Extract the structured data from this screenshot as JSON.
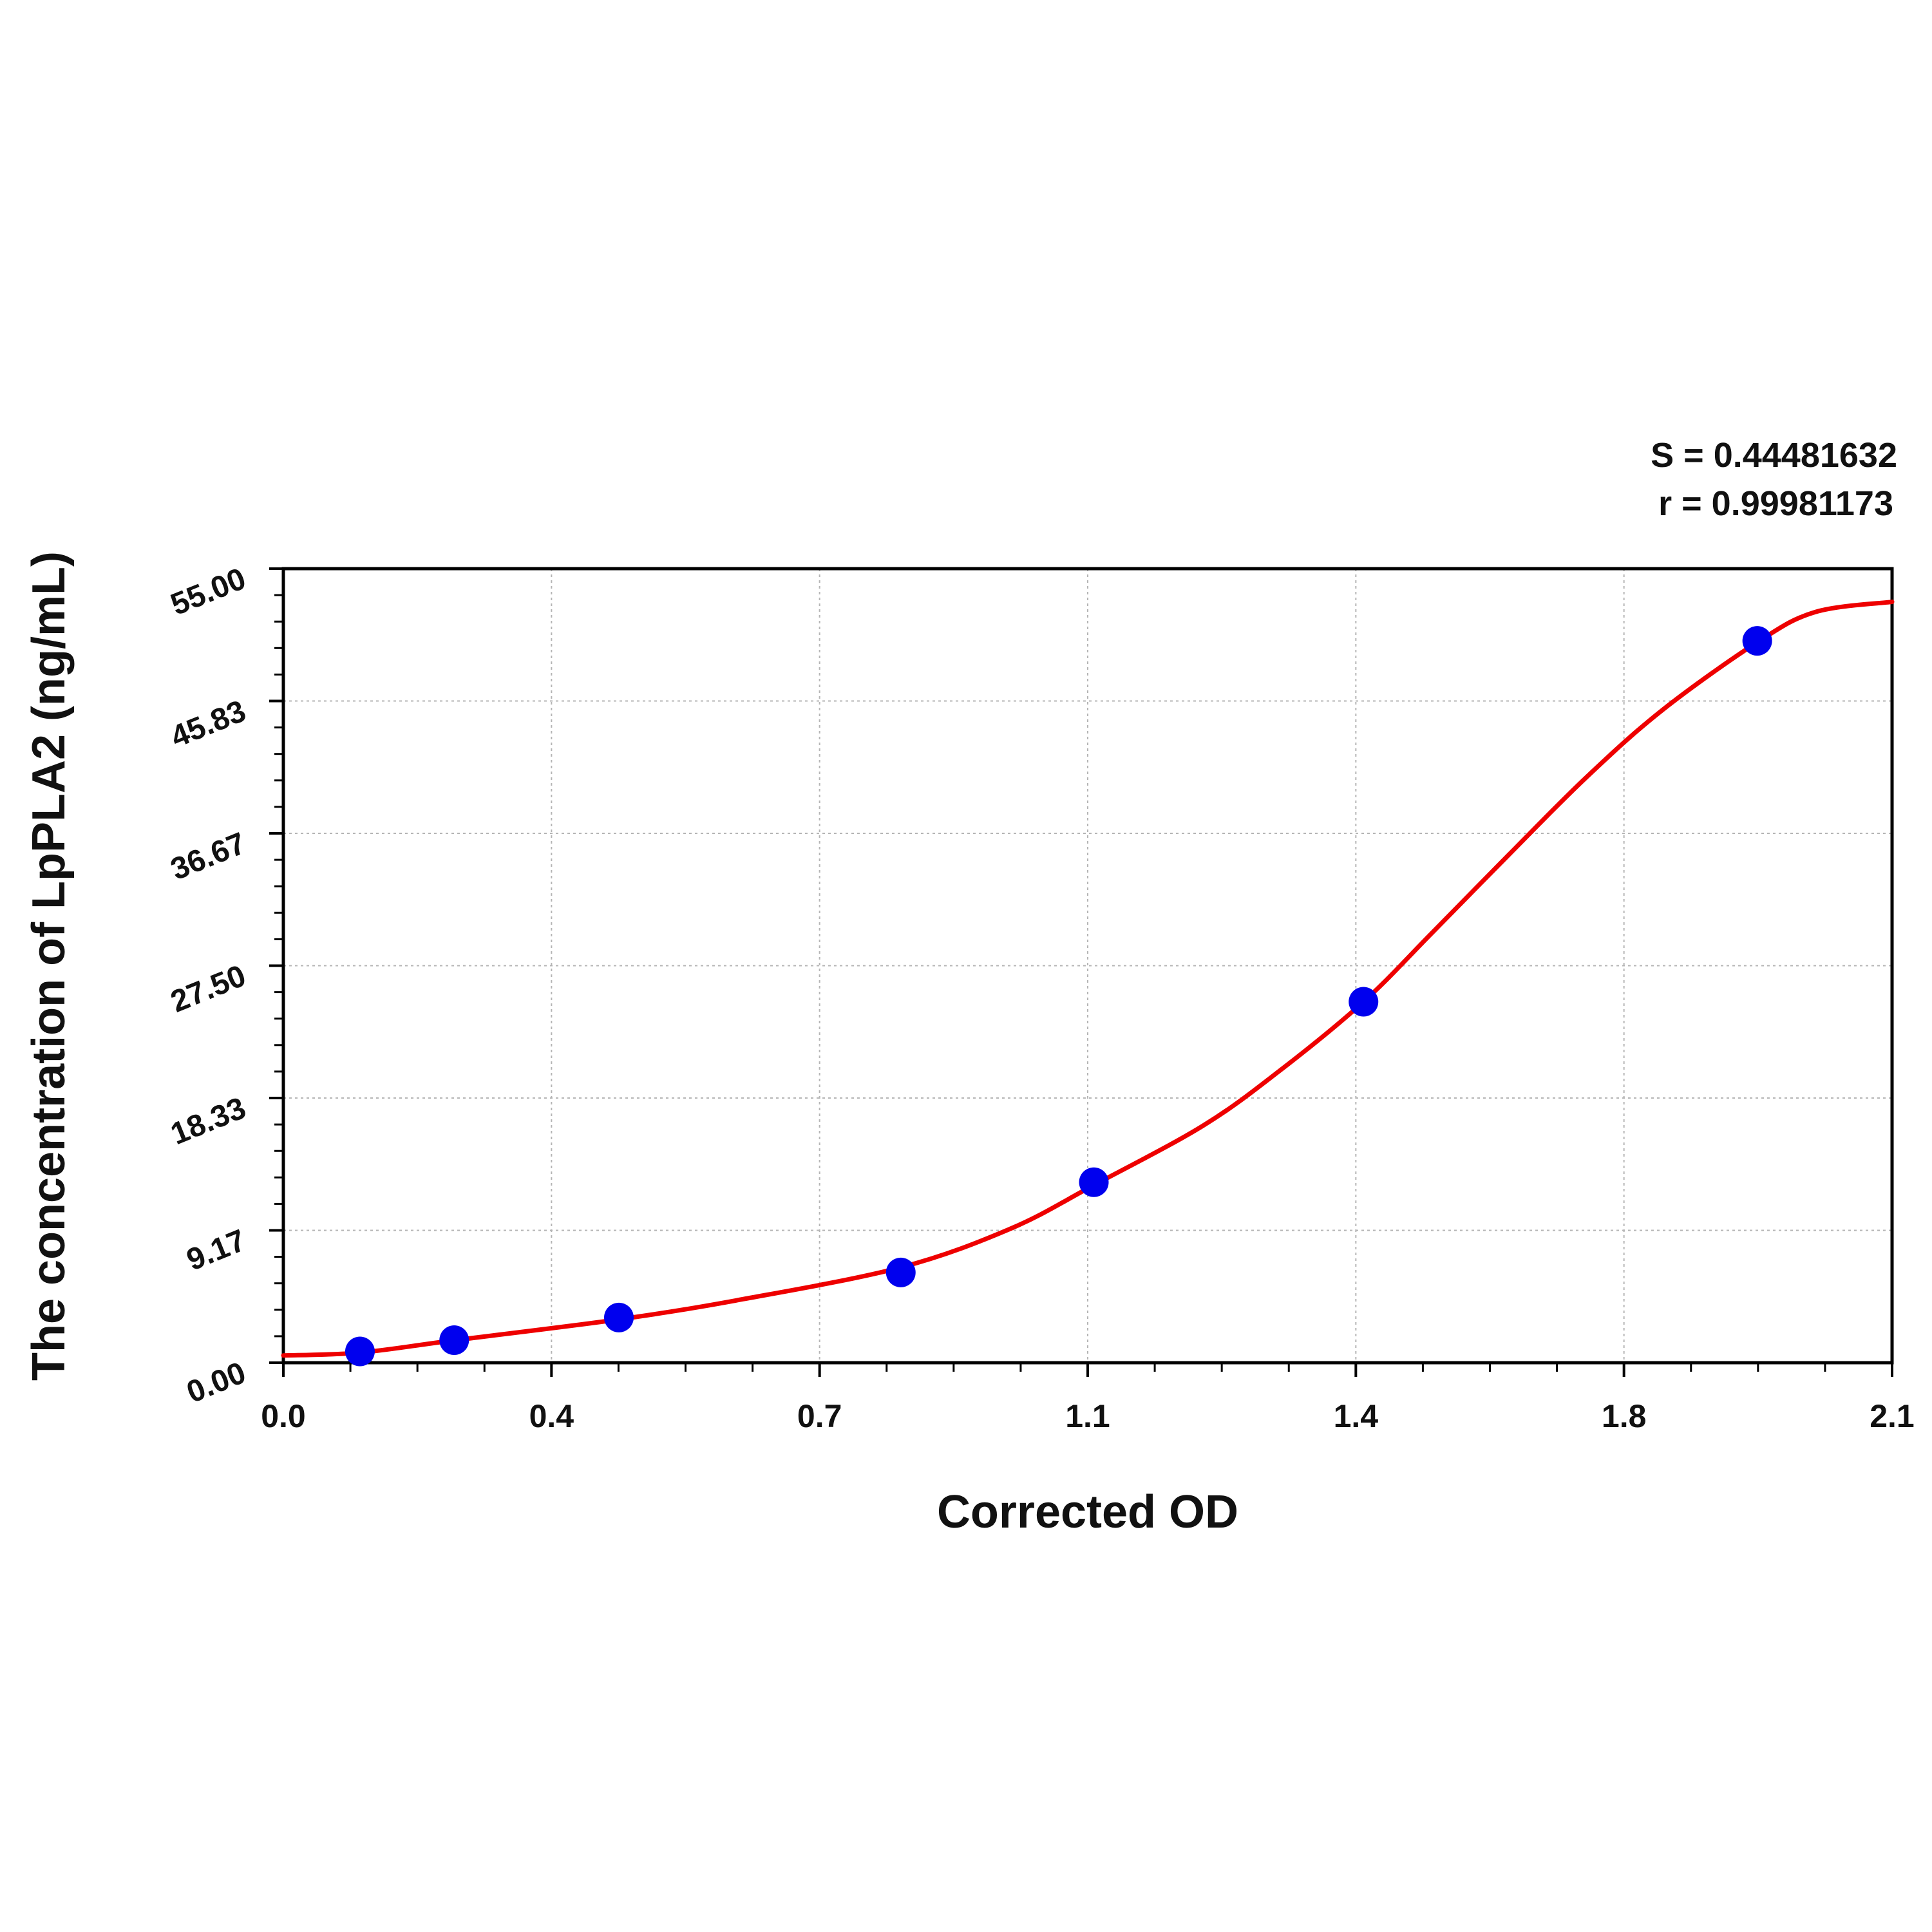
{
  "chart_data": {
    "type": "scatter",
    "xlabel": "Corrected OD",
    "ylabel": "The concentration of LpPLA2 (ng/mL)",
    "xlim": [
      0,
      2.1
    ],
    "ylim": [
      0,
      55
    ],
    "x_ticks": [
      "0.0",
      "0.4",
      "0.7",
      "1.1",
      "1.4",
      "1.8",
      "2.1"
    ],
    "y_ticks": [
      "0.00",
      "9.17",
      "18.33",
      "27.50",
      "36.67",
      "45.83",
      "55.00"
    ],
    "grid": true,
    "annotations": [
      "S = 0.44481632",
      "r = 0.99981173"
    ],
    "series": [
      {
        "kind": "points",
        "color": "#0000ee",
        "x": [
          0.1,
          0.223,
          0.438,
          0.806,
          1.058,
          1.41,
          1.924
        ],
        "y": [
          0.78,
          1.56,
          3.13,
          6.25,
          12.5,
          25.0,
          50.0
        ]
      },
      {
        "kind": "fit-curve",
        "color": "#ee0000",
        "x": [
          0.0,
          0.1,
          0.223,
          0.438,
          0.6,
          0.806,
          0.95,
          1.058,
          1.2,
          1.3,
          1.41,
          1.5,
          1.6,
          1.7,
          1.8,
          1.924,
          2.0,
          2.1
        ],
        "y": [
          0.5,
          0.7,
          1.55,
          3.0,
          4.4,
          6.6,
          9.3,
          12.3,
          16.4,
          20.2,
          25.0,
          29.8,
          35.2,
          40.5,
          45.2,
          49.9,
          52.0,
          52.7
        ]
      }
    ]
  }
}
